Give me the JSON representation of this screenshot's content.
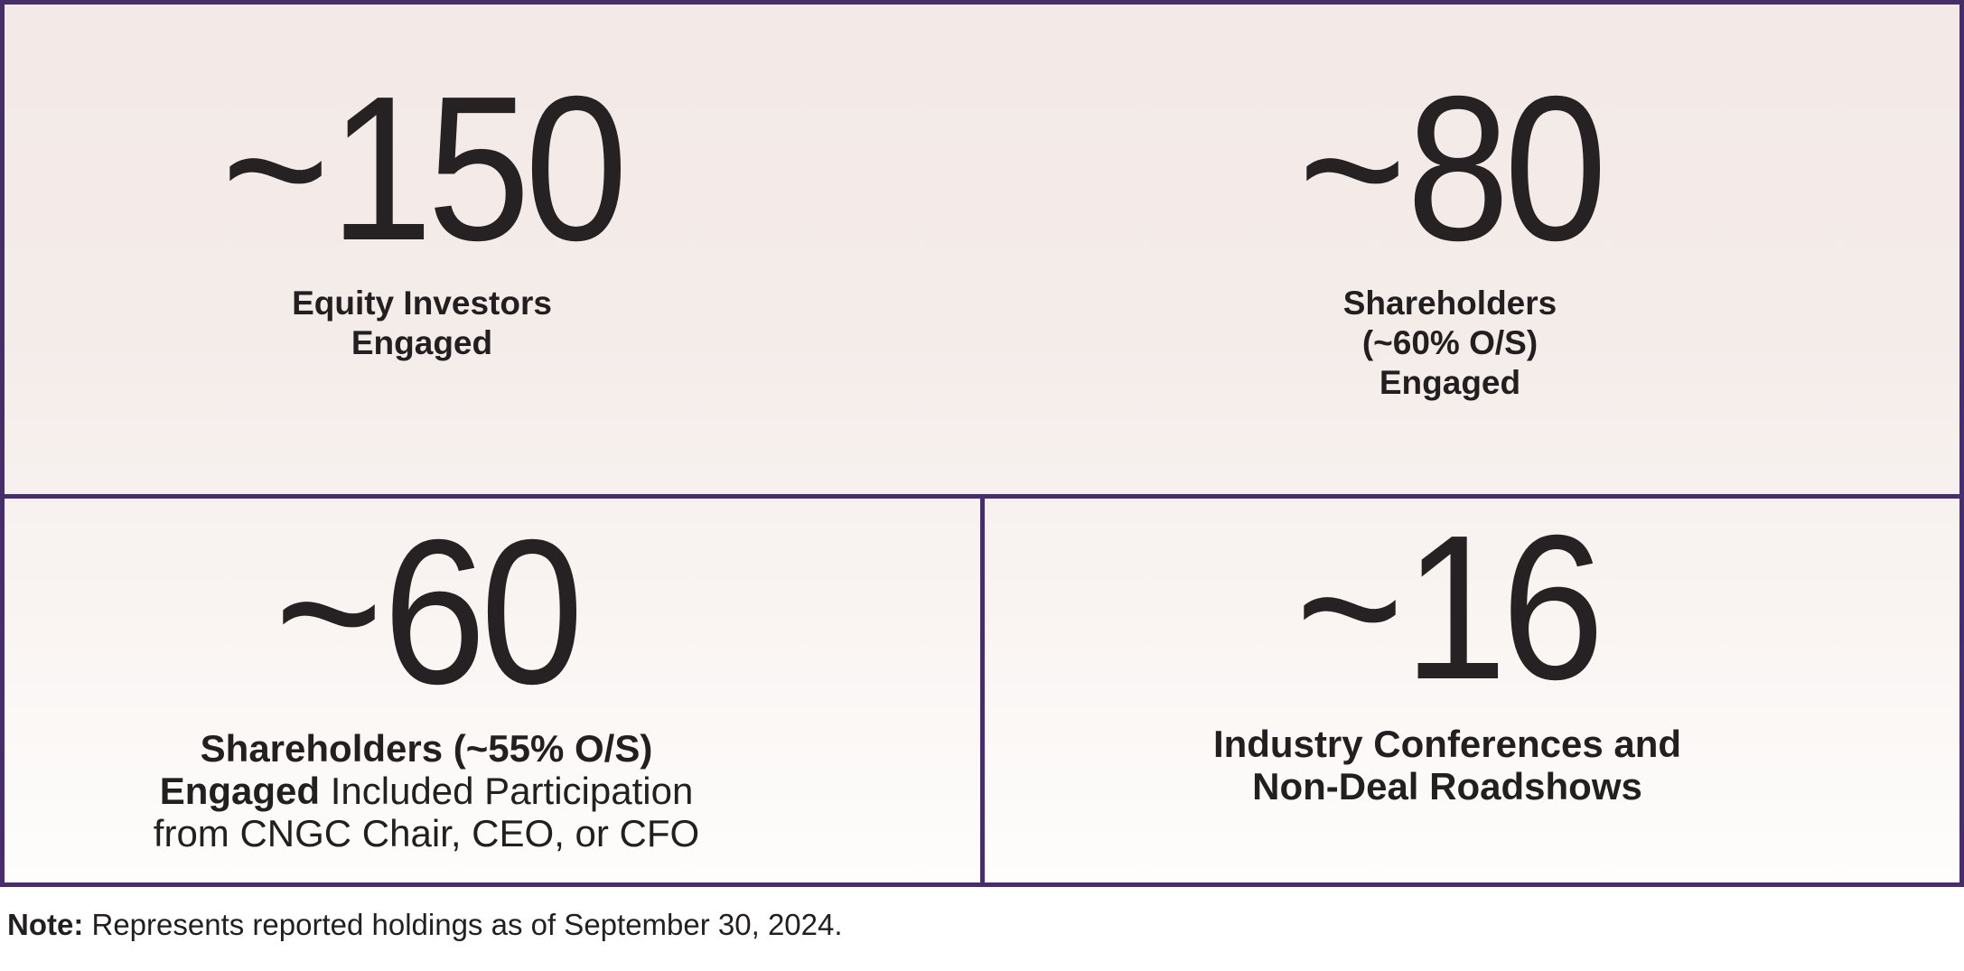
{
  "colors": {
    "border": "#472e68",
    "text": "#231f20",
    "background_top": "#f3eae7",
    "background_bottom": "#fefdfc"
  },
  "stats": {
    "equity_investors": {
      "approx": "~",
      "number": "150",
      "label_lines": [
        "Equity Investors",
        "Engaged"
      ]
    },
    "shareholders_60": {
      "approx": "~",
      "number": "80",
      "label_lines": [
        "Shareholders",
        "(~60% O/S)",
        "Engaged"
      ]
    },
    "shareholders_55": {
      "approx": "~",
      "number": "60",
      "line1_bold": "Shareholders (~55% O/S)",
      "line2_bold": "Engaged",
      "line2_regular": " Included Participation",
      "line3_regular": "from CNGC Chair, CEO, or CFO"
    },
    "conferences": {
      "approx": "~",
      "number": "16",
      "label_lines": [
        "Industry Conferences and",
        "Non-Deal Roadshows"
      ]
    }
  },
  "note": {
    "bold_prefix": "Note:",
    "text": " Represents reported holdings as of September 30, 2024."
  }
}
